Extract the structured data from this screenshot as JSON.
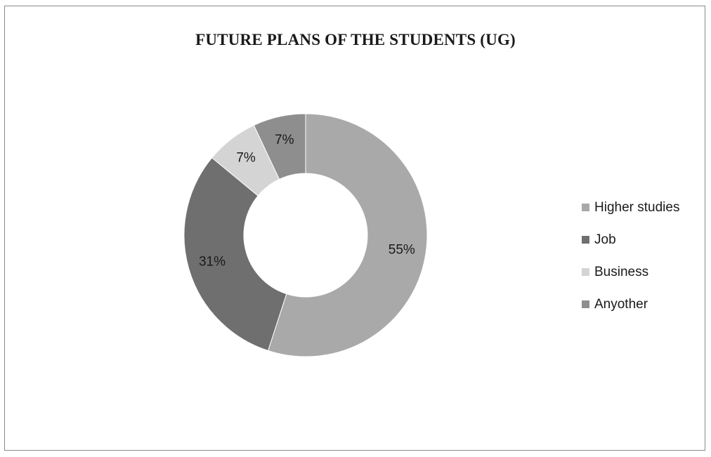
{
  "chart_data": {
    "type": "pie",
    "title": "FUTURE PLANS OF THE STUDENTS (UG)",
    "categories": [
      "Higher studies",
      "Job",
      "Business",
      "Anyother"
    ],
    "values": [
      55,
      31,
      7,
      7
    ],
    "labels": [
      "55%",
      "31%",
      "7%",
      "7%"
    ],
    "donut": true,
    "legend_position": "right",
    "colors": [
      "#a9a9a9",
      "#6f6f6f",
      "#d4d4d4",
      "#8e8e8e"
    ]
  }
}
